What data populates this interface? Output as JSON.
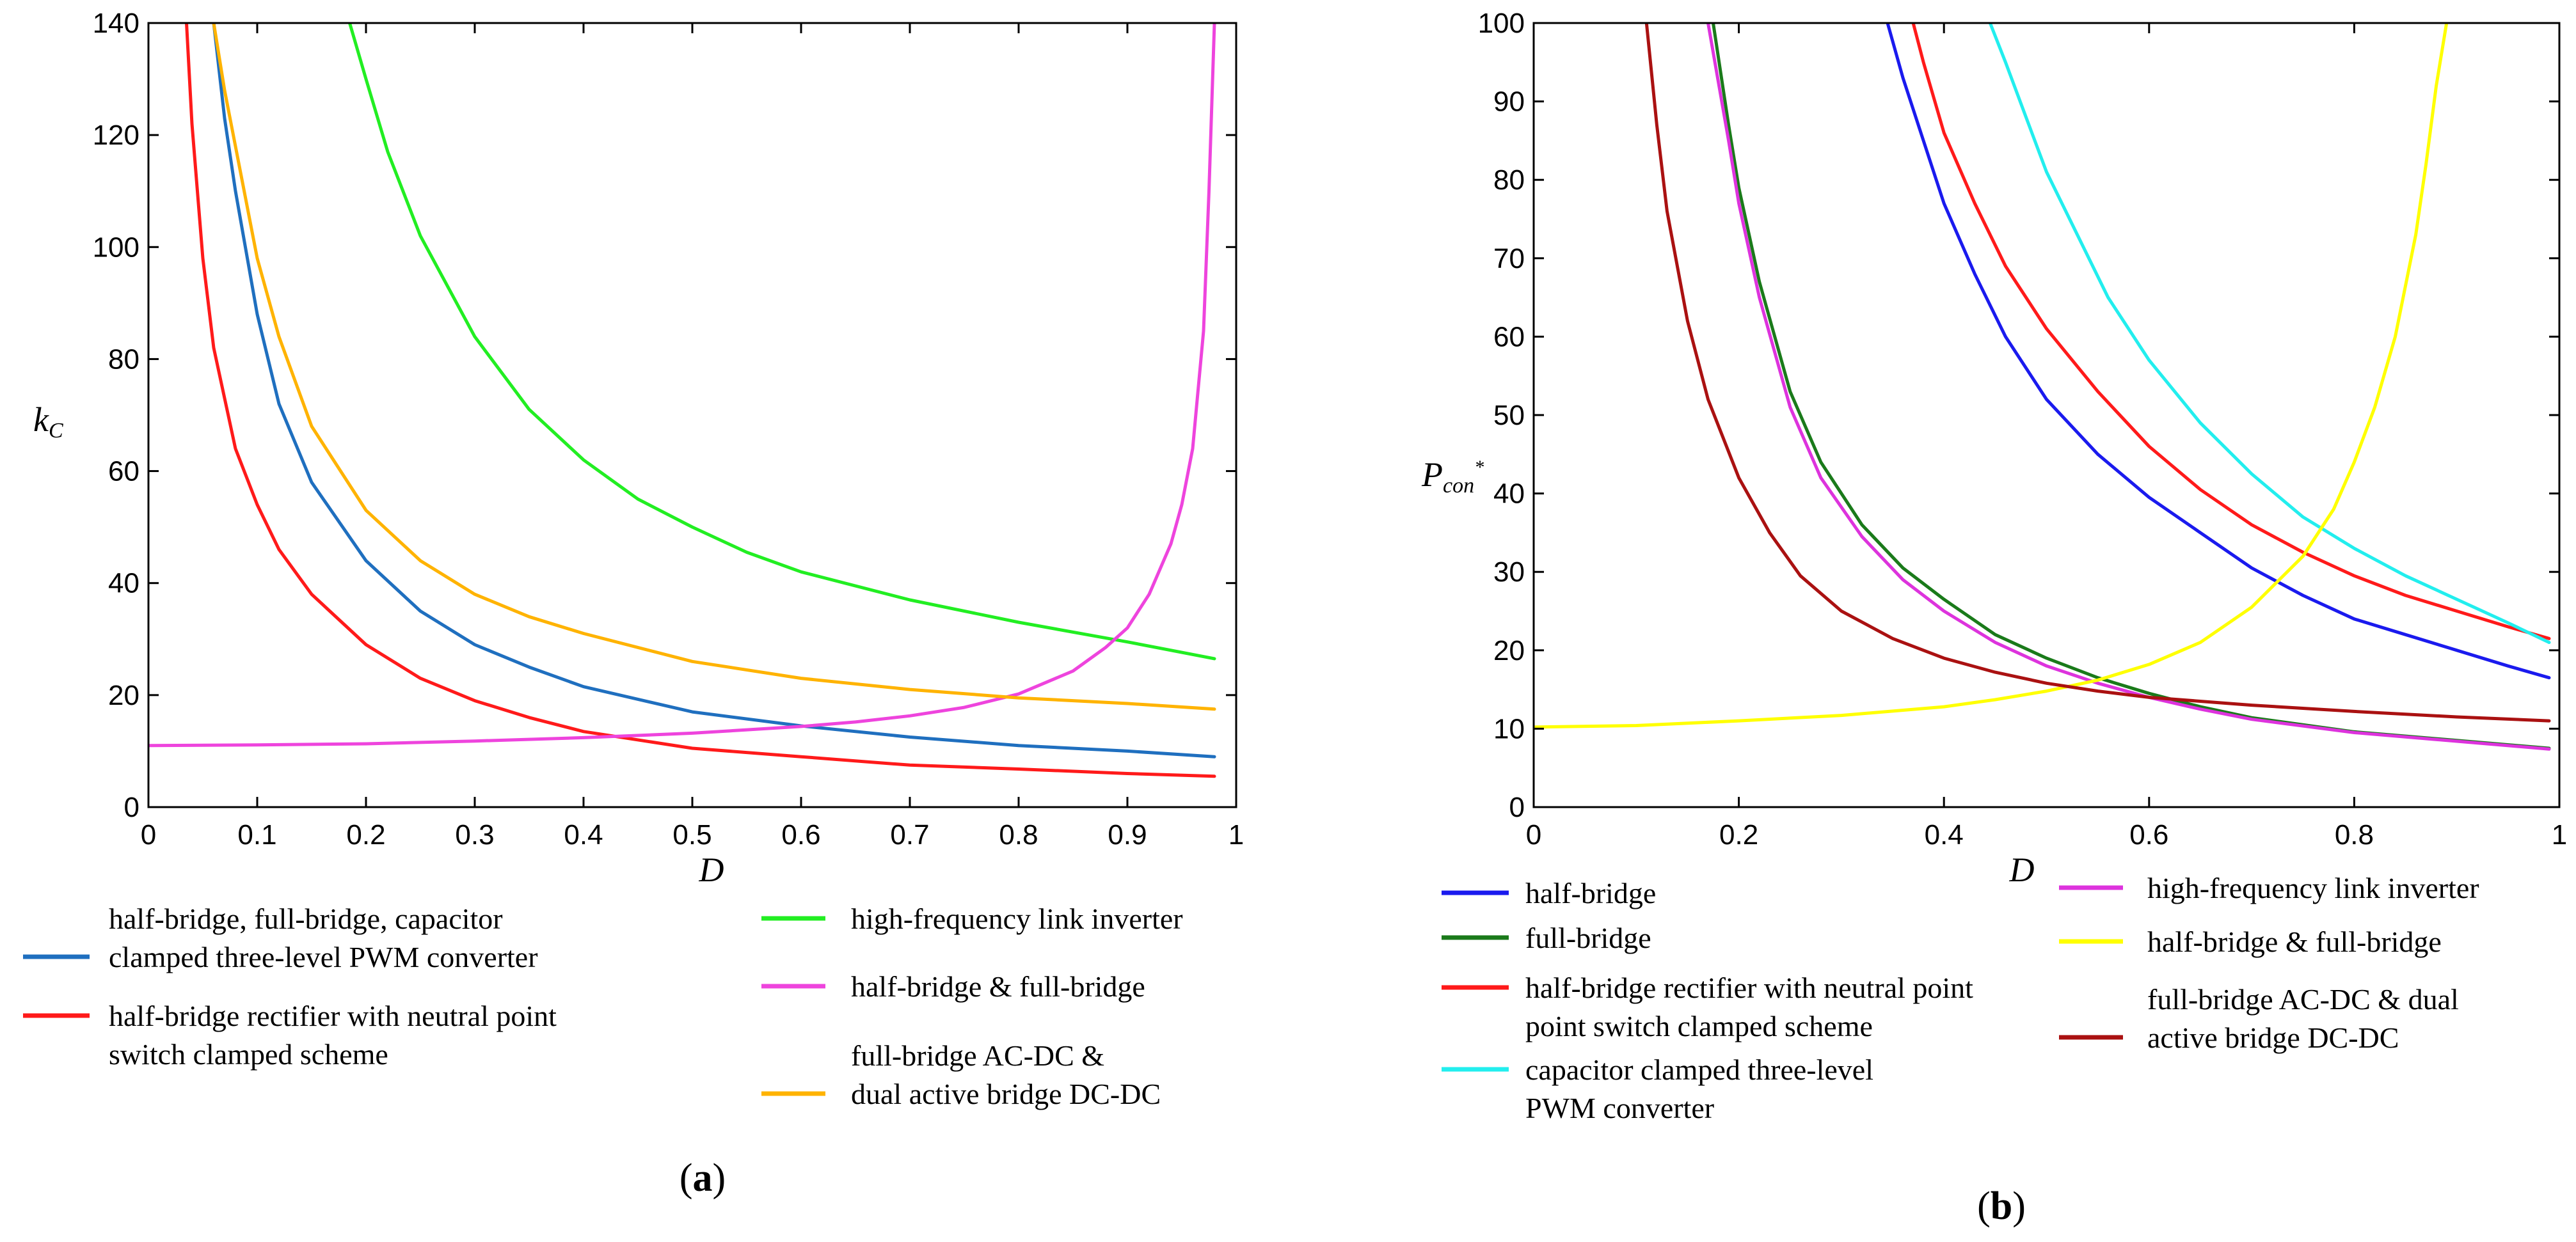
{
  "chart_data": [
    {
      "type": "line",
      "panel": "a",
      "caption": {
        "open": "(",
        "letter": "a",
        "close": ")"
      },
      "xlabel": "D",
      "ylabel": "kC",
      "ylabel_main": "k",
      "ylabel_sub": "C",
      "xlim": [
        0,
        1
      ],
      "ylim": [
        0,
        140
      ],
      "xticks": [
        0,
        0.1,
        0.2,
        0.3,
        0.4,
        0.5,
        0.6,
        0.7,
        0.8,
        0.9,
        1
      ],
      "xtick_labels": [
        "0",
        "0.1",
        "0.2",
        "0.3",
        "0.4",
        "0.5",
        "0.6",
        "0.7",
        "0.8",
        "0.9",
        "1"
      ],
      "yticks": [
        0,
        20,
        40,
        60,
        80,
        100,
        120,
        140
      ],
      "ytick_labels": [
        "0",
        "20",
        "40",
        "60",
        "80",
        "100",
        "120",
        "140"
      ],
      "series": [
        {
          "name": "half-bridge, full-bridge, capacitor clamped three-level PWM converter",
          "legend_lines": [
            "half-bridge, full-bridge, capacitor",
            "clamped three-level PWM converter"
          ],
          "color": "#1f6fbf",
          "x": [
            0.06,
            0.07,
            0.08,
            0.1,
            0.12,
            0.15,
            0.2,
            0.25,
            0.3,
            0.35,
            0.4,
            0.5,
            0.6,
            0.7,
            0.8,
            0.9,
            0.98
          ],
          "y": [
            140,
            123,
            110,
            88,
            72,
            58,
            44,
            35,
            29,
            25,
            21.5,
            17,
            14.5,
            12.5,
            11,
            10,
            9
          ]
        },
        {
          "name": "half-bridge rectifier with neutral point switch clamped scheme",
          "legend_lines": [
            "half-bridge rectifier with neutral point",
            "switch clamped scheme"
          ],
          "color": "#ff1a1a",
          "x": [
            0.035,
            0.04,
            0.05,
            0.06,
            0.08,
            0.1,
            0.12,
            0.15,
            0.2,
            0.25,
            0.3,
            0.35,
            0.4,
            0.5,
            0.6,
            0.7,
            0.8,
            0.9,
            0.98
          ],
          "y": [
            140,
            122,
            98,
            82,
            64,
            54,
            46,
            38,
            29,
            23,
            19,
            16,
            13.5,
            10.5,
            9,
            7.5,
            6.8,
            6,
            5.5
          ]
        },
        {
          "name": "high-frequency link inverter",
          "legend_lines": [
            " high-frequency link inverter"
          ],
          "color": "#22ee22",
          "x": [
            0.185,
            0.2,
            0.22,
            0.25,
            0.3,
            0.35,
            0.4,
            0.45,
            0.5,
            0.55,
            0.6,
            0.7,
            0.8,
            0.9,
            0.98
          ],
          "y": [
            140,
            130,
            117,
            102,
            84,
            71,
            62,
            55,
            50,
            45.5,
            42,
            37,
            33,
            29.5,
            26.5
          ]
        },
        {
          "name": "half-bridge & full-bridge",
          "legend_lines": [
            "half-bridge & full-bridge"
          ],
          "color": "#ee44dd",
          "x": [
            0,
            0.1,
            0.2,
            0.3,
            0.4,
            0.5,
            0.6,
            0.65,
            0.7,
            0.75,
            0.8,
            0.85,
            0.88,
            0.9,
            0.92,
            0.94,
            0.95,
            0.96,
            0.97,
            0.975,
            0.98
          ],
          "y": [
            11,
            11.1,
            11.3,
            11.8,
            12.4,
            13.2,
            14.4,
            15.2,
            16.3,
            17.8,
            20.2,
            24.3,
            28.5,
            32,
            38,
            47,
            54,
            64,
            85,
            110,
            140
          ]
        },
        {
          "name": "full-bridge AC-DC & dual active bridge DC-DC",
          "legend_lines": [
            "full-bridge AC-DC &",
            "dual active bridge DC-DC"
          ],
          "color": "#ffb300",
          "x": [
            0.06,
            0.07,
            0.08,
            0.1,
            0.12,
            0.15,
            0.2,
            0.25,
            0.3,
            0.35,
            0.4,
            0.5,
            0.6,
            0.7,
            0.8,
            0.9,
            0.98
          ],
          "y": [
            140,
            128,
            118,
            98,
            84,
            68,
            53,
            44,
            38,
            34,
            31,
            26,
            23,
            21,
            19.5,
            18.5,
            17.5
          ]
        }
      ]
    },
    {
      "type": "line",
      "panel": "b",
      "caption": {
        "open": "(",
        "letter": "b",
        "close": ")"
      },
      "xlabel": "D",
      "ylabel": "Pcon*",
      "ylabel_main": "P",
      "ylabel_sub": "con",
      "ylabel_sup": "*",
      "xlim": [
        0,
        1
      ],
      "ylim": [
        0,
        100
      ],
      "xticks": [
        0,
        0.2,
        0.4,
        0.6,
        0.8,
        1
      ],
      "xtick_labels": [
        "0",
        "0.2",
        "0.4",
        "0.6",
        "0.8",
        "1"
      ],
      "yticks": [
        0,
        10,
        20,
        30,
        40,
        50,
        60,
        70,
        80,
        90,
        100
      ],
      "ytick_labels": [
        "0",
        "10",
        "20",
        "30",
        "40",
        "50",
        "60",
        "70",
        "80",
        "90",
        "100"
      ],
      "series": [
        {
          "name": "half-bridge",
          "legend_lines": [
            "half-bridge"
          ],
          "color": "#1a1aee",
          "x": [
            0.345,
            0.36,
            0.38,
            0.4,
            0.43,
            0.46,
            0.5,
            0.55,
            0.6,
            0.65,
            0.7,
            0.75,
            0.8,
            0.85,
            0.9,
            0.95,
            0.99
          ],
          "y": [
            100,
            93,
            85,
            77,
            68,
            60,
            52,
            45,
            39.5,
            35,
            30.5,
            27,
            24,
            22,
            20,
            18,
            16.5
          ]
        },
        {
          "name": "full-bridge",
          "legend_lines": [
            "full-bridge"
          ],
          "color": "#1a7a1a",
          "x": [
            0.175,
            0.19,
            0.2,
            0.22,
            0.25,
            0.28,
            0.32,
            0.36,
            0.4,
            0.45,
            0.5,
            0.55,
            0.6,
            0.65,
            0.7,
            0.8,
            0.9,
            0.99
          ],
          "y": [
            100,
            87,
            79,
            67,
            53,
            44,
            36,
            30.5,
            26.5,
            22,
            19,
            16.5,
            14.5,
            12.8,
            11.4,
            9.6,
            8.5,
            7.5
          ]
        },
        {
          "name": "half-bridge rectifier with neutral point switch clamped scheme",
          "legend_lines": [
            "half-bridge rectifier with neutral point",
            "point switch clamped scheme"
          ],
          "color": "#ff1a1a",
          "x": [
            0.37,
            0.38,
            0.4,
            0.43,
            0.46,
            0.5,
            0.55,
            0.6,
            0.65,
            0.7,
            0.75,
            0.8,
            0.85,
            0.9,
            0.95,
            0.99
          ],
          "y": [
            100,
            95,
            86,
            77,
            69,
            61,
            53,
            46,
            40.5,
            36,
            32.5,
            29.5,
            27,
            25,
            23,
            21.5
          ]
        },
        {
          "name": "capacitor clamped three-level PWM converter",
          "legend_lines": [
            " capacitor clamped three-level",
            "PWM converter"
          ],
          "color": "#22eeee",
          "x": [
            0.445,
            0.46,
            0.48,
            0.5,
            0.53,
            0.56,
            0.6,
            0.65,
            0.7,
            0.75,
            0.8,
            0.85,
            0.9,
            0.95,
            0.99
          ],
          "y": [
            100,
            95,
            88,
            81,
            73,
            65,
            57,
            49,
            42.5,
            37,
            33,
            29.5,
            26.5,
            23.5,
            21
          ]
        },
        {
          "name": "high-frequency link inverter",
          "legend_lines": [
            " high-frequency link inverter"
          ],
          "color": "#dd33dd",
          "x": [
            0.17,
            0.19,
            0.2,
            0.22,
            0.25,
            0.28,
            0.32,
            0.36,
            0.4,
            0.45,
            0.5,
            0.55,
            0.6,
            0.65,
            0.7,
            0.8,
            0.9,
            0.99
          ],
          "y": [
            100,
            85,
            77,
            65,
            51,
            42,
            34.5,
            29,
            25,
            21,
            18,
            15.8,
            14,
            12.5,
            11.2,
            9.5,
            8.4,
            7.4
          ]
        },
        {
          "name": "half-bridge & full-bridge",
          "legend_lines": [
            "half-bridge & full-bridge"
          ],
          "color": "#ffff00",
          "x": [
            0,
            0.1,
            0.2,
            0.3,
            0.4,
            0.45,
            0.5,
            0.55,
            0.6,
            0.65,
            0.7,
            0.75,
            0.78,
            0.8,
            0.82,
            0.84,
            0.86,
            0.87,
            0.88,
            0.89
          ],
          "y": [
            10.2,
            10.4,
            11,
            11.7,
            12.8,
            13.7,
            14.8,
            16.2,
            18.2,
            21,
            25.5,
            32,
            38,
            44,
            51,
            60,
            73,
            82,
            92,
            100
          ]
        },
        {
          "name": "full-bridge AC-DC & dual active bridge DC-DC",
          "legend_lines": [
            "full-bridge AC-DC & dual",
            "active bridge DC-DC"
          ],
          "color": "#aa1111",
          "x": [
            0.11,
            0.12,
            0.13,
            0.15,
            0.17,
            0.2,
            0.23,
            0.26,
            0.3,
            0.35,
            0.4,
            0.45,
            0.5,
            0.55,
            0.6,
            0.7,
            0.8,
            0.9,
            0.99
          ],
          "y": [
            100,
            87,
            76,
            62,
            52,
            42,
            35,
            29.5,
            25,
            21.5,
            19,
            17.2,
            15.8,
            14.8,
            14,
            13,
            12.2,
            11.5,
            11
          ]
        }
      ]
    }
  ]
}
